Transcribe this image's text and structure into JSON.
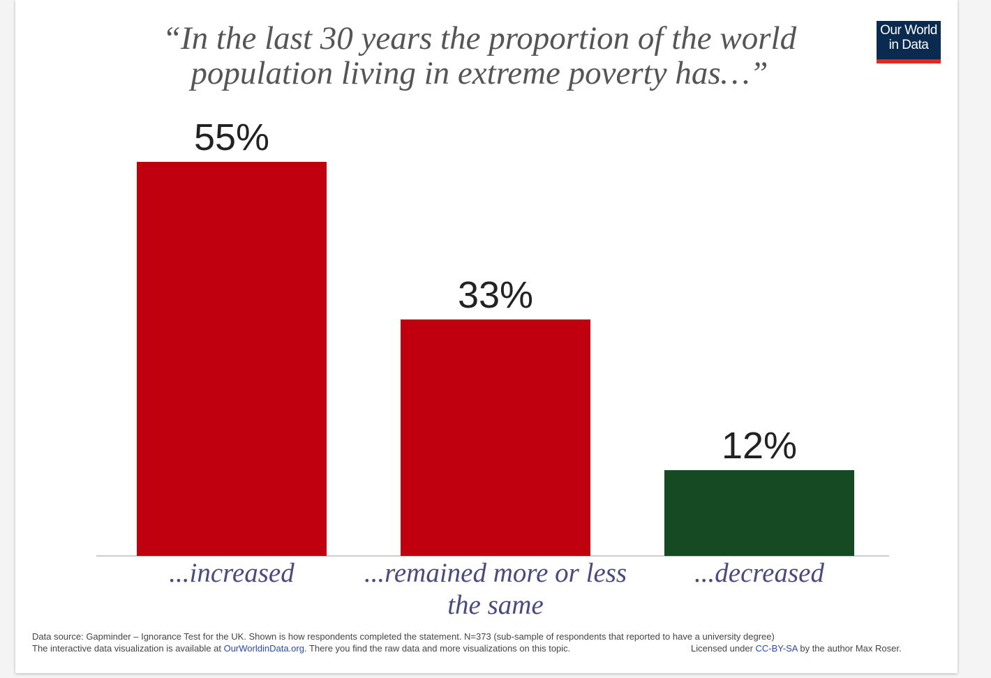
{
  "chart_data": {
    "type": "bar",
    "title": "“In the last 30 years the proportion of the world population living in extreme poverty has…”",
    "categories": [
      "...increased",
      "...remained more or less the same",
      "...decreased"
    ],
    "values": [
      55,
      33,
      12
    ],
    "value_labels": [
      "55%",
      "33%",
      "12%"
    ],
    "colors": [
      "#c0000e",
      "#c0000e",
      "#154a22"
    ],
    "logo": [
      "Our World",
      "in Data"
    ],
    "source": "Data source: Gapminder – Ignorance Test for the UK. Shown is how respondents completed the statement. N=373 (sub-sample of respondents that reported to have a university degree)",
    "availability": [
      "The interactive data visualization is available at ",
      "OurWorldinData.org",
      ". There you find the raw data and more visualizations on this topic."
    ],
    "license": [
      "Licensed under ",
      "CC-BY-SA",
      " by the author Max Roser."
    ]
  }
}
